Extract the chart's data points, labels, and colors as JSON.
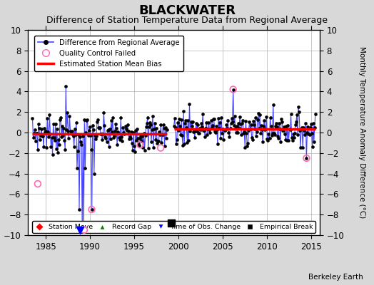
{
  "title": "BLACKWATER",
  "subtitle": "Difference of Station Temperature Data from Regional Average",
  "ylabel_right": "Monthly Temperature Anomaly Difference (°C)",
  "xlim": [
    1983.0,
    2016.0
  ],
  "ylim": [
    -10,
    10
  ],
  "yticks": [
    -10,
    -8,
    -6,
    -4,
    -2,
    0,
    2,
    4,
    6,
    8,
    10
  ],
  "xticks": [
    1985,
    1990,
    1995,
    2000,
    2005,
    2010,
    2015
  ],
  "background_color": "#d8d8d8",
  "plot_bg_color": "#ffffff",
  "grid_color": "#b0b0b0",
  "title_fontsize": 13,
  "subtitle_fontsize": 9,
  "attribution": "Berkeley Earth",
  "segment1_end": 1998.7,
  "segment2_start": 1999.5,
  "bias_seg1": -0.15,
  "bias_seg2": 0.35,
  "emp_break_t": 1999.2,
  "emp_break_v": -8.8,
  "tobs_t": 1988.9,
  "tobs_v": -9.5,
  "qc_circle_color": "#ff69b4",
  "line_color": "#4444ff",
  "seed": 7
}
